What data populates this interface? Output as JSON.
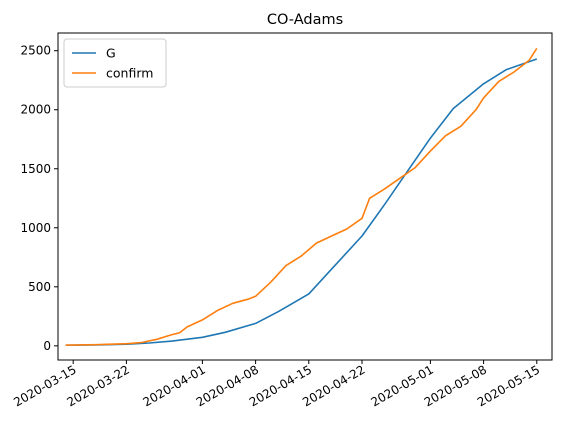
{
  "chart_data": {
    "type": "line",
    "title": "CO-Adams",
    "xlabel": "",
    "ylabel": "",
    "x_range": [
      "2020-03-13",
      "2020-05-17"
    ],
    "ylim": [
      -120,
      2650
    ],
    "grid": false,
    "legend": "top-left",
    "x_ticks": [
      "2020-03-15",
      "2020-03-22",
      "2020-04-01",
      "2020-04-08",
      "2020-04-15",
      "2020-04-22",
      "2020-05-01",
      "2020-05-08",
      "2020-05-15"
    ],
    "y_ticks": [
      0,
      500,
      1000,
      1500,
      2000,
      2500
    ],
    "series": [
      {
        "name": "G",
        "color": "#1f77b4",
        "x": [
          "2020-03-14",
          "2020-03-18",
          "2020-03-22",
          "2020-03-25",
          "2020-03-28",
          "2020-04-01",
          "2020-04-04",
          "2020-04-08",
          "2020-04-11",
          "2020-04-15",
          "2020-04-18",
          "2020-04-22",
          "2020-04-25",
          "2020-04-28",
          "2020-05-01",
          "2020-05-04",
          "2020-05-08",
          "2020-05-11",
          "2020-05-15"
        ],
        "values": [
          5,
          8,
          14,
          24,
          40,
          72,
          115,
          190,
          290,
          440,
          650,
          930,
          1200,
          1480,
          1760,
          2010,
          2220,
          2340,
          2430
        ]
      },
      {
        "name": "confirm",
        "color": "#ff7f0e",
        "x": [
          "2020-03-14",
          "2020-03-18",
          "2020-03-22",
          "2020-03-24",
          "2020-03-26",
          "2020-03-28",
          "2020-03-29",
          "2020-03-30",
          "2020-04-01",
          "2020-04-03",
          "2020-04-05",
          "2020-04-07",
          "2020-04-08",
          "2020-04-10",
          "2020-04-12",
          "2020-04-14",
          "2020-04-16",
          "2020-04-18",
          "2020-04-20",
          "2020-04-22",
          "2020-04-23",
          "2020-04-25",
          "2020-04-27",
          "2020-04-29",
          "2020-05-01",
          "2020-05-03",
          "2020-05-05",
          "2020-05-07",
          "2020-05-08",
          "2020-05-10",
          "2020-05-12",
          "2020-05-14",
          "2020-05-15"
        ],
        "values": [
          5,
          10,
          18,
          28,
          55,
          95,
          110,
          160,
          220,
          300,
          360,
          395,
          420,
          540,
          680,
          760,
          870,
          930,
          990,
          1080,
          1250,
          1330,
          1420,
          1510,
          1650,
          1780,
          1860,
          2000,
          2100,
          2240,
          2320,
          2420,
          2520
        ]
      }
    ]
  }
}
